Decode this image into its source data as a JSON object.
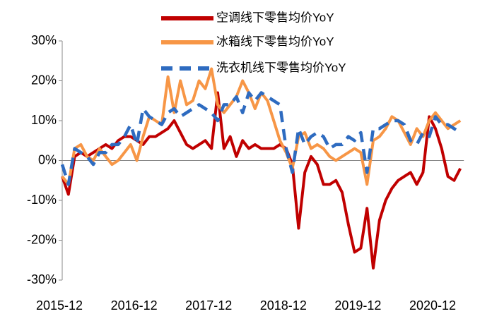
{
  "chart_data": {
    "type": "line",
    "categories": [
      "2015-12",
      null,
      null,
      null,
      null,
      null,
      null,
      null,
      null,
      null,
      null,
      null,
      "2016-12",
      null,
      null,
      null,
      null,
      null,
      null,
      null,
      null,
      null,
      null,
      null,
      "2017-12",
      null,
      null,
      null,
      null,
      null,
      null,
      null,
      null,
      null,
      null,
      null,
      "2018-12",
      null,
      null,
      null,
      null,
      null,
      null,
      null,
      null,
      null,
      null,
      null,
      "2019-12",
      null,
      null,
      null,
      null,
      null,
      null,
      null,
      null,
      null,
      null,
      null,
      "2020-12",
      null,
      null,
      null,
      null
    ],
    "series": [
      {
        "name": "空调线下零售均价YoY",
        "color": "#c00000",
        "dashed": false,
        "values": [
          -4,
          -8.5,
          1,
          2,
          1,
          2,
          3,
          4,
          3,
          5,
          6,
          6,
          5,
          4,
          6,
          6,
          7,
          8,
          10,
          7,
          4,
          3,
          4,
          5,
          3,
          17,
          3,
          6,
          1,
          5,
          3,
          4,
          3,
          3,
          3,
          4,
          3,
          -1,
          -17,
          -3,
          1,
          -1,
          -6,
          -6,
          -5,
          -8,
          -16,
          -23,
          -22,
          -12,
          -27,
          -15,
          -10,
          -7,
          -5,
          -4,
          -3,
          -6,
          -3,
          11,
          8,
          3,
          -4,
          -5,
          -2
        ]
      },
      {
        "name": "冰箱线下零售均价YoY",
        "color": "#f79646",
        "dashed": false,
        "values": [
          -4,
          -6,
          3,
          4,
          1,
          0,
          3,
          1,
          -1,
          0,
          2,
          4,
          0,
          6,
          11,
          10,
          9,
          21,
          12,
          20,
          14,
          15,
          20,
          18,
          23,
          14,
          12,
          14,
          16,
          20,
          17,
          13,
          17,
          15,
          10,
          5,
          2,
          -2,
          6,
          7,
          3,
          4,
          3,
          1,
          0,
          1,
          2,
          3,
          2,
          -6,
          5,
          6,
          8,
          11,
          10,
          7,
          4,
          8,
          6,
          10,
          12,
          10,
          8,
          9,
          10
        ]
      },
      {
        "name": "洗衣机线下零售均价YoY",
        "color": "#2e6bc0",
        "dashed": true,
        "values": [
          -1,
          -6,
          3,
          2,
          1,
          -1,
          2,
          2,
          4,
          4,
          6,
          9,
          4,
          13,
          11,
          10,
          9,
          12,
          13,
          11,
          12,
          13,
          14,
          13,
          12,
          10,
          14,
          14,
          16,
          12,
          17,
          15,
          17,
          16,
          15,
          14,
          3,
          -3,
          8,
          4,
          6,
          7,
          6,
          3,
          4,
          4,
          6,
          5,
          7,
          -3,
          8,
          8,
          9,
          10,
          10,
          9,
          5,
          4,
          7,
          6,
          11,
          9,
          9,
          8,
          7
        ]
      }
    ],
    "ylim": [
      -30,
      30
    ],
    "yticks": [
      {
        "value": -30,
        "label": "-30%"
      },
      {
        "value": -20,
        "label": "-20%"
      },
      {
        "value": -10,
        "label": "-10%"
      },
      {
        "value": 0,
        "label": "0%"
      },
      {
        "value": 10,
        "label": "10%"
      },
      {
        "value": 20,
        "label": "20%"
      },
      {
        "value": 30,
        "label": "30%"
      }
    ],
    "grid": false,
    "legend": "top"
  }
}
